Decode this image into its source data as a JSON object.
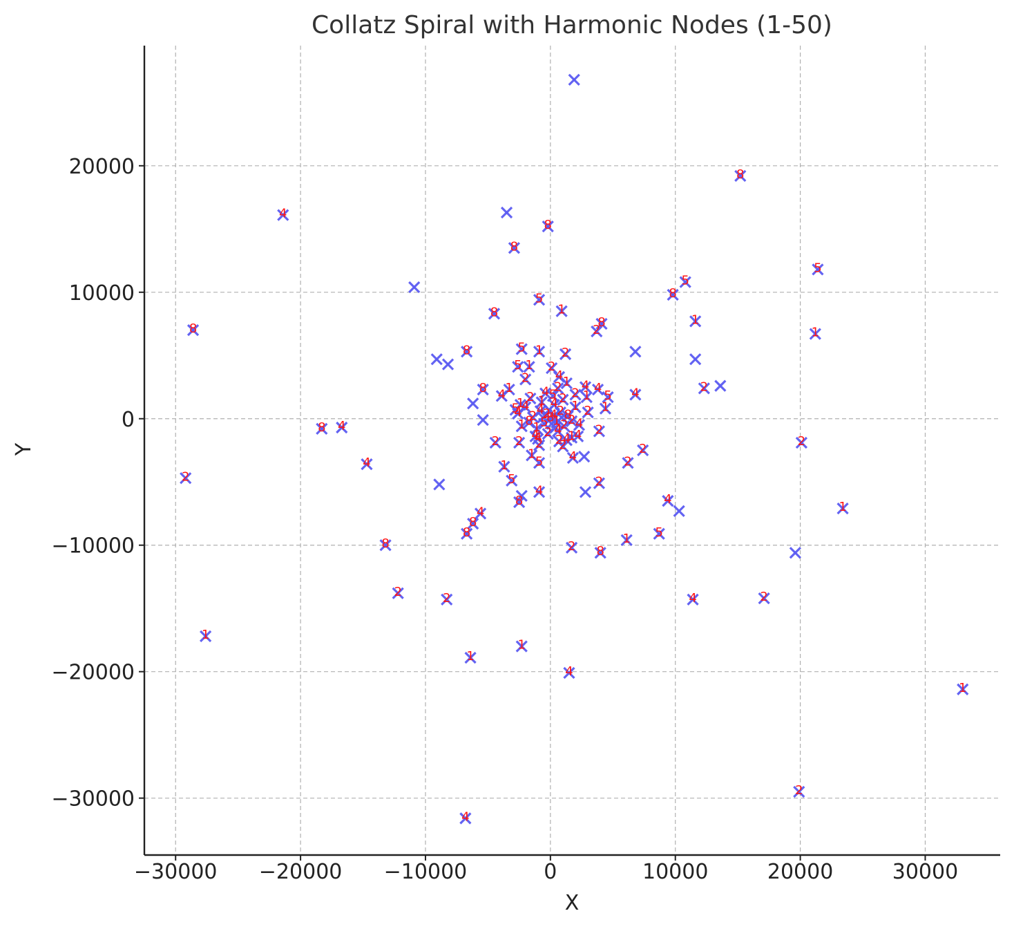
{
  "chart_data": {
    "type": "scatter",
    "title": "Collatz Spiral with Harmonic Nodes (1-50)",
    "xlabel": "X",
    "ylabel": "Y",
    "xlim": [
      -32500,
      36000
    ],
    "ylim": [
      -34500,
      29500
    ],
    "xticks": [
      -30000,
      -20000,
      -10000,
      0,
      10000,
      20000,
      30000
    ],
    "xtick_labels": [
      "−30000",
      "−20000",
      "−10000",
      "0",
      "10000",
      "20000",
      "30000"
    ],
    "yticks": [
      -30000,
      -20000,
      -10000,
      0,
      10000,
      20000
    ],
    "ytick_labels": [
      "−30000",
      "−20000",
      "−10000",
      "0",
      "10000",
      "20000"
    ],
    "grid": true,
    "marker_color": "#5b5bf2",
    "label_color": "#ff1414",
    "points": [
      {
        "x": 1900,
        "y": 26800,
        "label": ""
      },
      {
        "x": 15200,
        "y": 19200,
        "label": "8"
      },
      {
        "x": -21400,
        "y": 16100,
        "label": "4"
      },
      {
        "x": -3500,
        "y": 16300,
        "label": ""
      },
      {
        "x": -200,
        "y": 15200,
        "label": "8"
      },
      {
        "x": -2900,
        "y": 13500,
        "label": "8"
      },
      {
        "x": 21400,
        "y": 11800,
        "label": "5"
      },
      {
        "x": 10800,
        "y": 10800,
        "label": "5"
      },
      {
        "x": -10900,
        "y": 10400,
        "label": ""
      },
      {
        "x": 9800,
        "y": 9800,
        "label": "8"
      },
      {
        "x": -900,
        "y": 9400,
        "label": "5"
      },
      {
        "x": -4500,
        "y": 8300,
        "label": "8"
      },
      {
        "x": 900,
        "y": 8500,
        "label": "1"
      },
      {
        "x": 11600,
        "y": 7700,
        "label": "1"
      },
      {
        "x": 4100,
        "y": 7500,
        "label": "8"
      },
      {
        "x": 3700,
        "y": 6900,
        "label": "2"
      },
      {
        "x": -28600,
        "y": 7000,
        "label": "8"
      },
      {
        "x": 21200,
        "y": 6700,
        "label": "1"
      },
      {
        "x": -6700,
        "y": 5300,
        "label": "8"
      },
      {
        "x": 6800,
        "y": 5300,
        "label": ""
      },
      {
        "x": -2300,
        "y": 5500,
        "label": "5"
      },
      {
        "x": -900,
        "y": 5300,
        "label": "1"
      },
      {
        "x": 1200,
        "y": 5100,
        "label": "2"
      },
      {
        "x": -9100,
        "y": 4700,
        "label": ""
      },
      {
        "x": 11600,
        "y": 4700,
        "label": ""
      },
      {
        "x": -8200,
        "y": 4300,
        "label": ""
      },
      {
        "x": -2600,
        "y": 4100,
        "label": "5"
      },
      {
        "x": -1700,
        "y": 4100,
        "label": "1"
      },
      {
        "x": 100,
        "y": 4000,
        "label": "2"
      },
      {
        "x": 700,
        "y": 3300,
        "label": "4"
      },
      {
        "x": -2000,
        "y": 3100,
        "label": "2"
      },
      {
        "x": 1300,
        "y": 2800,
        "label": "1"
      },
      {
        "x": 13600,
        "y": 2600,
        "label": ""
      },
      {
        "x": 12300,
        "y": 2400,
        "label": "2"
      },
      {
        "x": -5400,
        "y": 2300,
        "label": "8"
      },
      {
        "x": -3300,
        "y": 2300,
        "label": "1"
      },
      {
        "x": 2800,
        "y": 2500,
        "label": "4"
      },
      {
        "x": 3800,
        "y": 2300,
        "label": "4"
      },
      {
        "x": -3900,
        "y": 1800,
        "label": "4"
      },
      {
        "x": 6800,
        "y": 1900,
        "label": "4"
      },
      {
        "x": 4600,
        "y": 1700,
        "label": "5"
      },
      {
        "x": 2000,
        "y": 1900,
        "label": "2"
      },
      {
        "x": 2900,
        "y": 1700,
        "label": "1"
      },
      {
        "x": -1600,
        "y": 1600,
        "label": "2"
      },
      {
        "x": -6200,
        "y": 1200,
        "label": ""
      },
      {
        "x": -2400,
        "y": 1100,
        "label": "1"
      },
      {
        "x": 4400,
        "y": 800,
        "label": "1"
      },
      {
        "x": -2800,
        "y": 700,
        "label": "5"
      },
      {
        "x": -2600,
        "y": 400,
        "label": "4"
      },
      {
        "x": 3000,
        "y": 500,
        "label": "2"
      },
      {
        "x": -5400,
        "y": -100,
        "label": ""
      },
      {
        "x": -18300,
        "y": -800,
        "label": "8"
      },
      {
        "x": -16700,
        "y": -700,
        "label": "4"
      },
      {
        "x": 3900,
        "y": -1000,
        "label": "2"
      },
      {
        "x": -4400,
        "y": -1900,
        "label": "2"
      },
      {
        "x": -2500,
        "y": -1900,
        "label": "2"
      },
      {
        "x": -1000,
        "y": -1600,
        "label": "4"
      },
      {
        "x": 1700,
        "y": -1500,
        "label": "1"
      },
      {
        "x": 2200,
        "y": -1400,
        "label": "4"
      },
      {
        "x": 20100,
        "y": -1900,
        "label": "2"
      },
      {
        "x": 7400,
        "y": -2500,
        "label": "2"
      },
      {
        "x": -1500,
        "y": -2900,
        "label": "1"
      },
      {
        "x": 1800,
        "y": -3100,
        "label": "4"
      },
      {
        "x": 2700,
        "y": -3000,
        "label": ""
      },
      {
        "x": 6200,
        "y": -3500,
        "label": "2"
      },
      {
        "x": -900,
        "y": -3500,
        "label": "5"
      },
      {
        "x": -29200,
        "y": -4700,
        "label": "2"
      },
      {
        "x": -14700,
        "y": -3600,
        "label": "4"
      },
      {
        "x": -3700,
        "y": -3800,
        "label": "1"
      },
      {
        "x": -3100,
        "y": -4900,
        "label": "5"
      },
      {
        "x": 3900,
        "y": -5100,
        "label": "2"
      },
      {
        "x": -8900,
        "y": -5200,
        "label": ""
      },
      {
        "x": -900,
        "y": -5800,
        "label": "4"
      },
      {
        "x": 2800,
        "y": -5800,
        "label": ""
      },
      {
        "x": -2300,
        "y": -6100,
        "label": ""
      },
      {
        "x": -2500,
        "y": -6600,
        "label": "8"
      },
      {
        "x": 9400,
        "y": -6500,
        "label": "4"
      },
      {
        "x": 10300,
        "y": -7300,
        "label": ""
      },
      {
        "x": 23400,
        "y": -7100,
        "label": "1"
      },
      {
        "x": -5600,
        "y": -7500,
        "label": "4"
      },
      {
        "x": -6200,
        "y": -8300,
        "label": "8"
      },
      {
        "x": -6700,
        "y": -9100,
        "label": "8"
      },
      {
        "x": 8700,
        "y": -9100,
        "label": "5"
      },
      {
        "x": 6100,
        "y": -9600,
        "label": "1"
      },
      {
        "x": -13200,
        "y": -10000,
        "label": "8"
      },
      {
        "x": 1700,
        "y": -10200,
        "label": "2"
      },
      {
        "x": 4000,
        "y": -10600,
        "label": "8"
      },
      {
        "x": 19600,
        "y": -10600,
        "label": ""
      },
      {
        "x": -12200,
        "y": -13800,
        "label": "2"
      },
      {
        "x": -8300,
        "y": -14300,
        "label": "2"
      },
      {
        "x": 11400,
        "y": -14300,
        "label": "4"
      },
      {
        "x": 17100,
        "y": -14200,
        "label": "2"
      },
      {
        "x": -27600,
        "y": -17200,
        "label": "1"
      },
      {
        "x": -2300,
        "y": -18000,
        "label": "1"
      },
      {
        "x": -6400,
        "y": -18900,
        "label": "1"
      },
      {
        "x": 1500,
        "y": -20100,
        "label": "4"
      },
      {
        "x": 33000,
        "y": -21400,
        "label": "1"
      },
      {
        "x": 19900,
        "y": -29500,
        "label": "2"
      },
      {
        "x": -6800,
        "y": -31600,
        "label": "4"
      },
      {
        "x": 0,
        "y": 0,
        "label": "8"
      },
      {
        "x": 250,
        "y": 200,
        "label": "4"
      },
      {
        "x": -300,
        "y": 300,
        "label": "2"
      },
      {
        "x": 500,
        "y": -300,
        "label": "1"
      },
      {
        "x": -500,
        "y": -400,
        "label": "5"
      },
      {
        "x": 800,
        "y": 500,
        "label": "2"
      },
      {
        "x": -800,
        "y": 600,
        "label": "4"
      },
      {
        "x": 1100,
        "y": -600,
        "label": "2"
      },
      {
        "x": -1100,
        "y": -800,
        "label": "1"
      },
      {
        "x": 300,
        "y": 1100,
        "label": "4"
      },
      {
        "x": -200,
        "y": -1200,
        "label": "2"
      },
      {
        "x": 1400,
        "y": 200,
        "label": "8"
      },
      {
        "x": -1400,
        "y": 100,
        "label": "2"
      },
      {
        "x": 600,
        "y": -1000,
        "label": "4"
      },
      {
        "x": -700,
        "y": 1300,
        "label": "1"
      },
      {
        "x": 1000,
        "y": 1500,
        "label": "2"
      },
      {
        "x": -1200,
        "y": -1400,
        "label": "4"
      },
      {
        "x": 1700,
        "y": -200,
        "label": "2"
      },
      {
        "x": -1700,
        "y": -300,
        "label": "8"
      },
      {
        "x": 200,
        "y": 1800,
        "label": "5"
      },
      {
        "x": 700,
        "y": -1800,
        "label": "2"
      },
      {
        "x": -400,
        "y": 2000,
        "label": "4"
      },
      {
        "x": 2000,
        "y": 900,
        "label": "1"
      },
      {
        "x": -2000,
        "y": 900,
        "label": "4"
      },
      {
        "x": 1300,
        "y": -1700,
        "label": "4"
      },
      {
        "x": -900,
        "y": -2100,
        "label": "2"
      },
      {
        "x": 600,
        "y": 2400,
        "label": "2"
      },
      {
        "x": 2300,
        "y": -500,
        "label": "4"
      },
      {
        "x": -2300,
        "y": -600,
        "label": "1"
      },
      {
        "x": 1000,
        "y": -2200,
        "label": "2"
      },
      {
        "x": -100,
        "y": 700,
        "label": ""
      },
      {
        "x": 400,
        "y": -700,
        "label": ""
      },
      {
        "x": -600,
        "y": 100,
        "label": ""
      },
      {
        "x": 900,
        "y": 100,
        "label": ""
      },
      {
        "x": 100,
        "y": -400,
        "label": ""
      }
    ]
  }
}
